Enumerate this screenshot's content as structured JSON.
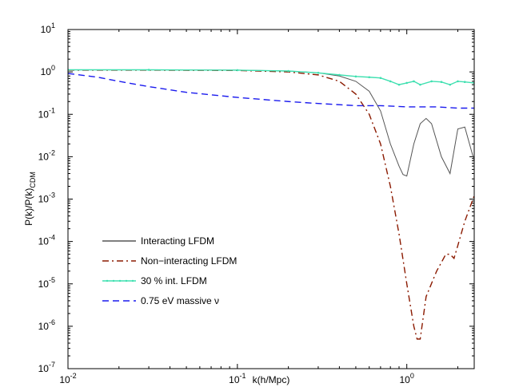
{
  "chart_data": {
    "type": "line",
    "title": "",
    "xlabel": "k(h/Mpc)",
    "ylabel": "P(k)/P(k)",
    "ylabel_subscript": "CDM",
    "xscale": "log",
    "yscale": "log",
    "xlim": [
      0.01,
      2.5
    ],
    "ylim": [
      1e-07,
      10
    ],
    "x_ticks": [
      {
        "value": 0.01,
        "base": "10",
        "exp": "-2"
      },
      {
        "value": 0.1,
        "base": "10",
        "exp": "-1"
      },
      {
        "value": 1,
        "base": "10",
        "exp": "0"
      }
    ],
    "y_ticks": [
      {
        "value": 10,
        "base": "10",
        "exp": "1"
      },
      {
        "value": 1,
        "base": "10",
        "exp": "0"
      },
      {
        "value": 0.1,
        "base": "10",
        "exp": "-1"
      },
      {
        "value": 0.01,
        "base": "10",
        "exp": "-2"
      },
      {
        "value": 0.001,
        "base": "10",
        "exp": "-3"
      },
      {
        "value": 0.0001,
        "base": "10",
        "exp": "-4"
      },
      {
        "value": 1e-05,
        "base": "10",
        "exp": "-5"
      },
      {
        "value": 1e-06,
        "base": "10",
        "exp": "-6"
      },
      {
        "value": 1e-07,
        "base": "10",
        "exp": "-7"
      }
    ],
    "legend_position": "lower-left",
    "series": [
      {
        "name": "Interacting LFDM",
        "color": "#555555",
        "dash": "solid",
        "marker": "none",
        "x": [
          0.01,
          0.03,
          0.1,
          0.2,
          0.3,
          0.4,
          0.5,
          0.6,
          0.7,
          0.8,
          0.9,
          0.95,
          1.0,
          1.1,
          1.2,
          1.3,
          1.4,
          1.6,
          1.8,
          2.0,
          2.2,
          2.5
        ],
        "y": [
          1.12,
          1.12,
          1.1,
          1.05,
          0.95,
          0.8,
          0.6,
          0.35,
          0.12,
          0.02,
          0.006,
          0.0038,
          0.0035,
          0.02,
          0.06,
          0.08,
          0.06,
          0.01,
          0.004,
          0.045,
          0.05,
          0.008
        ]
      },
      {
        "name": "Non−interacting LFDM",
        "color": "#8b1a00",
        "dash": "dashdot",
        "marker": "none",
        "x": [
          0.01,
          0.03,
          0.1,
          0.2,
          0.3,
          0.4,
          0.5,
          0.6,
          0.7,
          0.8,
          0.9,
          1.0,
          1.1,
          1.15,
          1.2,
          1.3,
          1.5,
          1.7,
          1.8,
          1.9,
          2.0,
          2.2,
          2.5
        ],
        "y": [
          1.1,
          1.1,
          1.08,
          1.0,
          0.85,
          0.6,
          0.3,
          0.1,
          0.02,
          0.002,
          0.00015,
          1e-05,
          1e-06,
          5e-07,
          5e-07,
          5e-06,
          2e-05,
          5e-05,
          5e-05,
          4e-05,
          8e-05,
          0.0003,
          0.0012
        ]
      },
      {
        "name": "30 % int. LFDM",
        "color": "#3fe0b0",
        "dash": "solid",
        "marker": "dot",
        "x": [
          0.01,
          0.03,
          0.1,
          0.2,
          0.3,
          0.4,
          0.5,
          0.6,
          0.7,
          0.8,
          0.9,
          1.0,
          1.1,
          1.2,
          1.4,
          1.6,
          1.8,
          2.0,
          2.2,
          2.5
        ],
        "y": [
          1.12,
          1.12,
          1.1,
          1.05,
          0.95,
          0.85,
          0.78,
          0.75,
          0.72,
          0.6,
          0.5,
          0.55,
          0.6,
          0.5,
          0.6,
          0.58,
          0.5,
          0.6,
          0.58,
          0.55
        ]
      },
      {
        "name": "0.75 eV massive ν",
        "color": "#1a1aee",
        "dash": "dashed",
        "marker": "none",
        "x": [
          0.01,
          0.015,
          0.02,
          0.03,
          0.05,
          0.1,
          0.2,
          0.3,
          0.5,
          0.7,
          1.0,
          1.5,
          2.0,
          2.5
        ],
        "y": [
          0.92,
          0.75,
          0.6,
          0.45,
          0.33,
          0.25,
          0.2,
          0.18,
          0.16,
          0.16,
          0.15,
          0.15,
          0.14,
          0.14
        ]
      }
    ]
  }
}
